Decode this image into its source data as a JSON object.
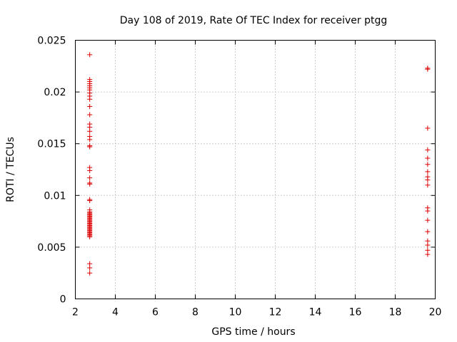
{
  "chart_data": {
    "type": "scatter",
    "title": "Day 108 of 2019, Rate Of TEC Index for receiver ptgg",
    "xlabel": "GPS time / hours",
    "ylabel": "ROTI / TECUs",
    "xlim": [
      2,
      20
    ],
    "ylim": [
      0,
      0.025
    ],
    "xticks": [
      "2",
      "4",
      "6",
      "8",
      "10",
      "12",
      "14",
      "16",
      "18",
      "20"
    ],
    "yticks": [
      "0",
      "0.005",
      "0.01",
      "0.015",
      "0.02",
      "0.025"
    ],
    "grid": true,
    "marker": "+",
    "color": "#dd0000",
    "series": [
      {
        "x": [
          2.72,
          2.72,
          2.72,
          2.72,
          2.72,
          2.72,
          2.72,
          2.72,
          2.72,
          2.72,
          2.72,
          2.72,
          2.72,
          2.72,
          2.72,
          2.72,
          2.72,
          2.72,
          2.72,
          2.72,
          2.72,
          2.72,
          2.72,
          2.72,
          2.72,
          2.72,
          2.72,
          2.72,
          2.72,
          2.72,
          2.72,
          2.72,
          2.72,
          2.72,
          2.72,
          2.72,
          2.72,
          2.72,
          2.72,
          2.72,
          2.72,
          2.72,
          2.72,
          2.72,
          2.72,
          2.72,
          2.72,
          2.72,
          2.72,
          2.72,
          2.72,
          2.72,
          2.72,
          2.72,
          2.72,
          19.62,
          19.62,
          19.62,
          19.62,
          19.62,
          19.62,
          19.62,
          19.62,
          19.62,
          19.62,
          19.62,
          19.62,
          19.62,
          19.62,
          19.62,
          19.62,
          19.62,
          19.62
        ],
        "y": [
          0.0236,
          0.0212,
          0.021,
          0.0208,
          0.0206,
          0.0204,
          0.0202,
          0.0199,
          0.0196,
          0.0193,
          0.0186,
          0.0178,
          0.0169,
          0.0166,
          0.0162,
          0.0157,
          0.0154,
          0.0148,
          0.0147,
          0.0127,
          0.0124,
          0.0117,
          0.0112,
          0.0111,
          0.0096,
          0.0095,
          0.0086,
          0.0084,
          0.0083,
          0.0082,
          0.0081,
          0.008,
          0.0079,
          0.0078,
          0.0077,
          0.0076,
          0.0075,
          0.0074,
          0.0073,
          0.0072,
          0.0071,
          0.007,
          0.0069,
          0.0068,
          0.0067,
          0.0066,
          0.0065,
          0.0064,
          0.0063,
          0.0062,
          0.0061,
          0.006,
          0.0034,
          0.003,
          0.0025,
          0.0223,
          0.0222,
          0.0165,
          0.0144,
          0.0136,
          0.013,
          0.0123,
          0.0118,
          0.0115,
          0.011,
          0.0088,
          0.0085,
          0.0076,
          0.0065,
          0.0056,
          0.0052,
          0.0047,
          0.0043
        ]
      }
    ]
  }
}
